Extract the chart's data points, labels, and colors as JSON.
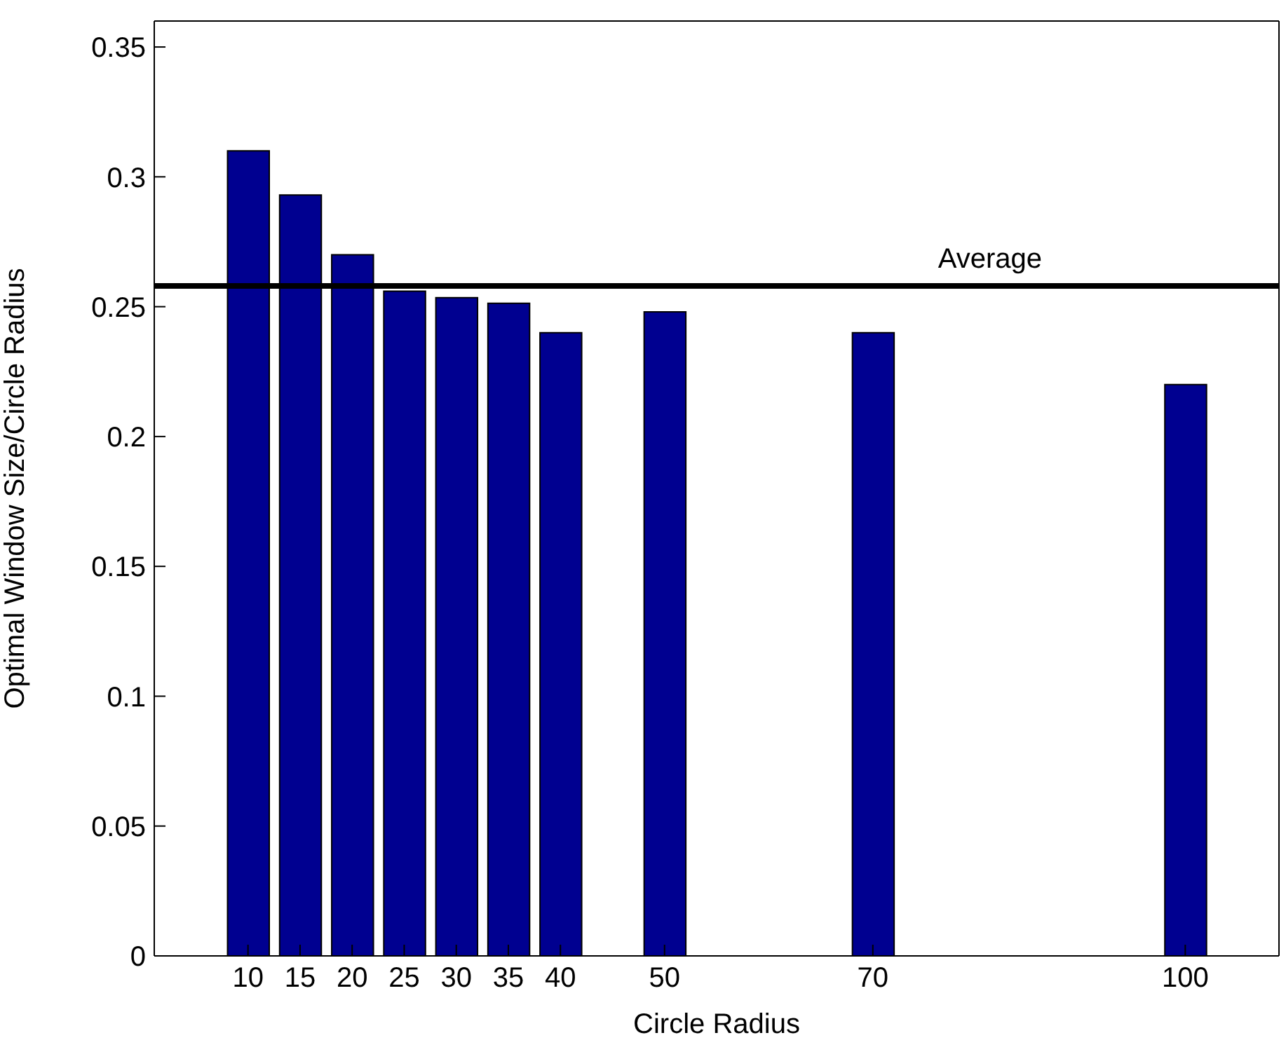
{
  "chart_data": {
    "type": "bar",
    "xlabel": "Circle Radius",
    "ylabel": "Optimal Window Size/Circle Radius",
    "x": [
      10,
      15,
      20,
      25,
      30,
      35,
      40,
      50,
      70,
      100
    ],
    "values": [
      0.31,
      0.293,
      0.27,
      0.256,
      0.2535,
      0.2513,
      0.24,
      0.248,
      0.24,
      0.22
    ],
    "color": "#000090",
    "xlim": [
      1,
      109
    ],
    "xticks": [
      10,
      15,
      20,
      25,
      30,
      35,
      40,
      50,
      70,
      100
    ],
    "ylim": [
      0,
      0.36
    ],
    "yticks": [
      0,
      0.05,
      0.1,
      0.15,
      0.2,
      0.25,
      0.3,
      0.35
    ],
    "ref_lines": [
      {
        "axis": "y",
        "value": 0.258,
        "label": "Average",
        "color": "#000000"
      }
    ],
    "grid": false,
    "legend": false
  }
}
